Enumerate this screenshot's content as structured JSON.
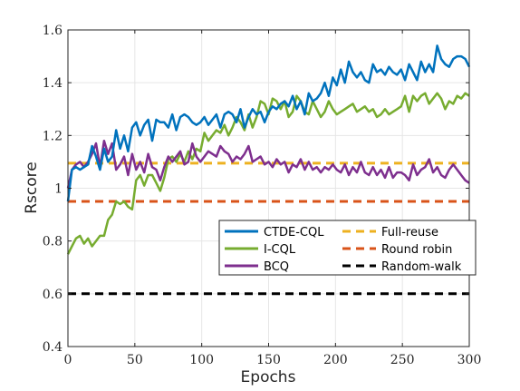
{
  "chart_data": {
    "type": "line",
    "xlabel": "Epochs",
    "ylabel": "Rscore",
    "xlim": [
      0,
      300
    ],
    "ylim": [
      0.4,
      1.6
    ],
    "xticks": [
      0,
      50,
      100,
      150,
      200,
      250,
      300
    ],
    "yticks": [
      0.4,
      0.6,
      0.8,
      1,
      1.2,
      1.4,
      1.6
    ],
    "ytick_labels": [
      "0.4",
      "0.6",
      "0.8",
      "1",
      "1.2",
      "1.4",
      "1.6"
    ],
    "grid": true,
    "legend": {
      "position": "center-right",
      "columns": 2,
      "items": [
        "CTDE-CQL",
        "Full-reuse",
        "I-CQL",
        "Round robin",
        "BCQ",
        "Random-walk"
      ]
    },
    "series": [
      {
        "name": "CTDE-CQL",
        "color": "#0072BD",
        "style": "solid",
        "x": [
          0,
          3,
          6,
          9,
          12,
          15,
          18,
          21,
          24,
          27,
          30,
          33,
          36,
          39,
          42,
          45,
          48,
          51,
          54,
          57,
          60,
          63,
          66,
          69,
          72,
          75,
          78,
          81,
          84,
          87,
          90,
          93,
          96,
          99,
          102,
          105,
          108,
          111,
          114,
          117,
          120,
          123,
          126,
          129,
          132,
          135,
          138,
          141,
          144,
          147,
          150,
          153,
          156,
          159,
          162,
          165,
          168,
          171,
          174,
          177,
          180,
          183,
          186,
          189,
          192,
          195,
          198,
          201,
          204,
          207,
          210,
          213,
          216,
          219,
          222,
          225,
          228,
          231,
          234,
          237,
          240,
          243,
          246,
          249,
          252,
          255,
          258,
          261,
          264,
          267,
          270,
          273,
          276,
          279,
          282,
          285,
          288,
          291,
          294,
          297,
          300
        ],
        "y": [
          0.95,
          1.07,
          1.08,
          1.07,
          1.08,
          1.09,
          1.16,
          1.12,
          1.07,
          1.15,
          1.1,
          1.12,
          1.22,
          1.15,
          1.2,
          1.14,
          1.23,
          1.25,
          1.2,
          1.24,
          1.26,
          1.18,
          1.26,
          1.25,
          1.25,
          1.23,
          1.28,
          1.22,
          1.27,
          1.28,
          1.27,
          1.25,
          1.24,
          1.25,
          1.27,
          1.24,
          1.26,
          1.28,
          1.23,
          1.28,
          1.29,
          1.28,
          1.25,
          1.3,
          1.23,
          1.27,
          1.3,
          1.28,
          1.29,
          1.25,
          1.29,
          1.31,
          1.3,
          1.32,
          1.33,
          1.31,
          1.35,
          1.3,
          1.33,
          1.28,
          1.36,
          1.33,
          1.34,
          1.36,
          1.4,
          1.35,
          1.42,
          1.39,
          1.45,
          1.4,
          1.48,
          1.44,
          1.42,
          1.44,
          1.41,
          1.4,
          1.47,
          1.44,
          1.45,
          1.43,
          1.46,
          1.44,
          1.43,
          1.45,
          1.41,
          1.47,
          1.44,
          1.41,
          1.48,
          1.44,
          1.47,
          1.44,
          1.54,
          1.49,
          1.47,
          1.46,
          1.49,
          1.5,
          1.5,
          1.49,
          1.46
        ]
      },
      {
        "name": "I-CQL",
        "color": "#77AC30",
        "style": "solid",
        "x": [
          0,
          3,
          6,
          9,
          12,
          15,
          18,
          21,
          24,
          27,
          30,
          33,
          36,
          39,
          42,
          45,
          48,
          51,
          54,
          57,
          60,
          63,
          66,
          69,
          72,
          75,
          78,
          81,
          84,
          87,
          90,
          93,
          96,
          99,
          102,
          105,
          108,
          111,
          114,
          117,
          120,
          123,
          126,
          129,
          132,
          135,
          138,
          141,
          144,
          147,
          150,
          153,
          156,
          159,
          162,
          165,
          168,
          171,
          174,
          177,
          180,
          183,
          186,
          189,
          192,
          195,
          198,
          201,
          204,
          207,
          210,
          213,
          216,
          219,
          222,
          225,
          228,
          231,
          234,
          237,
          240,
          243,
          246,
          249,
          252,
          255,
          258,
          261,
          264,
          267,
          270,
          273,
          276,
          279,
          282,
          285,
          288,
          291,
          294,
          297,
          300
        ],
        "y": [
          0.75,
          0.78,
          0.81,
          0.82,
          0.79,
          0.81,
          0.78,
          0.8,
          0.82,
          0.82,
          0.88,
          0.9,
          0.95,
          0.94,
          0.95,
          0.93,
          0.92,
          1.03,
          1.05,
          1.01,
          1.05,
          1.05,
          1.02,
          0.99,
          1.04,
          1.11,
          1.12,
          1.1,
          1.13,
          1.1,
          1.14,
          1.11,
          1.15,
          1.14,
          1.21,
          1.18,
          1.2,
          1.22,
          1.21,
          1.24,
          1.2,
          1.23,
          1.27,
          1.25,
          1.22,
          1.28,
          1.23,
          1.27,
          1.33,
          1.32,
          1.28,
          1.34,
          1.33,
          1.3,
          1.33,
          1.27,
          1.29,
          1.35,
          1.33,
          1.29,
          1.28,
          1.33,
          1.3,
          1.27,
          1.29,
          1.33,
          1.3,
          1.28,
          1.29,
          1.3,
          1.31,
          1.32,
          1.29,
          1.3,
          1.31,
          1.29,
          1.3,
          1.27,
          1.28,
          1.3,
          1.28,
          1.29,
          1.3,
          1.31,
          1.35,
          1.29,
          1.35,
          1.33,
          1.35,
          1.36,
          1.32,
          1.34,
          1.36,
          1.34,
          1.3,
          1.33,
          1.32,
          1.35,
          1.34,
          1.36,
          1.35
        ]
      },
      {
        "name": "BCQ",
        "color": "#7E2F8E",
        "style": "solid",
        "x": [
          0,
          3,
          6,
          9,
          12,
          15,
          18,
          21,
          24,
          27,
          30,
          33,
          36,
          39,
          42,
          45,
          48,
          51,
          54,
          57,
          60,
          63,
          66,
          69,
          72,
          75,
          78,
          81,
          84,
          87,
          90,
          93,
          96,
          99,
          102,
          105,
          108,
          111,
          114,
          117,
          120,
          123,
          126,
          129,
          132,
          135,
          138,
          141,
          144,
          147,
          150,
          153,
          156,
          159,
          162,
          165,
          168,
          171,
          174,
          177,
          180,
          183,
          186,
          189,
          192,
          195,
          198,
          201,
          204,
          207,
          210,
          213,
          216,
          219,
          222,
          225,
          228,
          231,
          234,
          237,
          240,
          243,
          246,
          249,
          252,
          255,
          258,
          261,
          264,
          267,
          270,
          273,
          276,
          279,
          282,
          285,
          288,
          291,
          294,
          297,
          300
        ],
        "y": [
          1.0,
          1.07,
          1.09,
          1.1,
          1.08,
          1.1,
          1.13,
          1.17,
          1.08,
          1.18,
          1.13,
          1.17,
          1.07,
          1.09,
          1.12,
          1.05,
          1.13,
          1.07,
          1.1,
          1.06,
          1.13,
          1.08,
          1.07,
          1.03,
          1.08,
          1.12,
          1.1,
          1.12,
          1.14,
          1.09,
          1.1,
          1.17,
          1.12,
          1.1,
          1.12,
          1.14,
          1.13,
          1.12,
          1.16,
          1.14,
          1.13,
          1.1,
          1.12,
          1.11,
          1.13,
          1.16,
          1.1,
          1.11,
          1.12,
          1.09,
          1.1,
          1.08,
          1.11,
          1.09,
          1.1,
          1.06,
          1.09,
          1.08,
          1.11,
          1.07,
          1.1,
          1.07,
          1.08,
          1.06,
          1.08,
          1.07,
          1.09,
          1.07,
          1.06,
          1.09,
          1.05,
          1.08,
          1.06,
          1.1,
          1.06,
          1.05,
          1.08,
          1.05,
          1.07,
          1.04,
          1.08,
          1.04,
          1.06,
          1.06,
          1.05,
          1.03,
          1.09,
          1.05,
          1.07,
          1.08,
          1.11,
          1.06,
          1.08,
          1.05,
          1.04,
          1.07,
          1.09,
          1.07,
          1.05,
          1.03,
          1.02
        ]
      },
      {
        "name": "Full-reuse",
        "color": "#EDB120",
        "style": "dashed",
        "x": [
          0,
          300
        ],
        "y": [
          1.095,
          1.095
        ]
      },
      {
        "name": "Round robin",
        "color": "#D95319",
        "style": "dashed",
        "x": [
          0,
          300
        ],
        "y": [
          0.95,
          0.95
        ]
      },
      {
        "name": "Random-walk",
        "color": "#000000",
        "style": "dashed",
        "x": [
          0,
          300
        ],
        "y": [
          0.6,
          0.6
        ]
      }
    ]
  }
}
